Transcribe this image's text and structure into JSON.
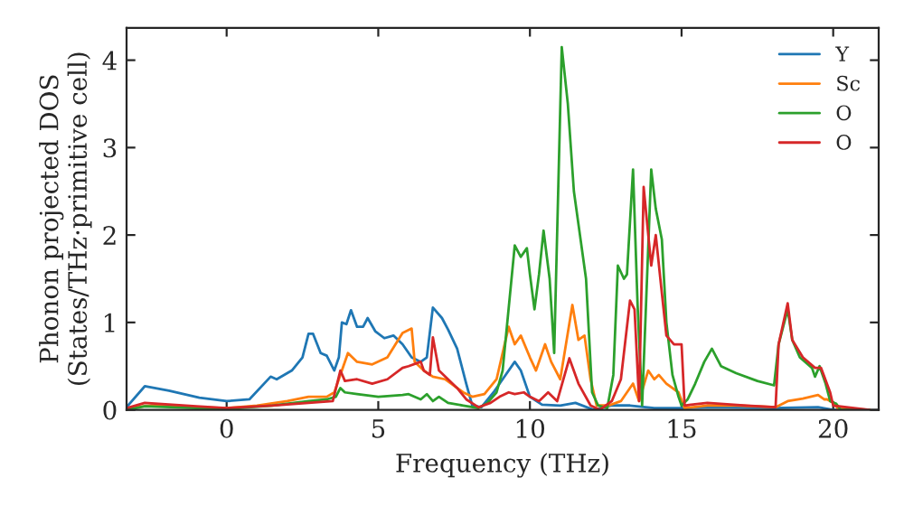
{
  "chart_data": {
    "type": "line",
    "xlabel": "Frequency (THz)",
    "ylabel": "Phonon projected DOS\n(States/THz·primitive cell)",
    "xlim": [
      -3.3,
      21.5
    ],
    "xticks": [
      0,
      5,
      10,
      15,
      20
    ],
    "ylim": [
      0,
      4.37
    ],
    "yticks": [
      0,
      1,
      2,
      3,
      4
    ],
    "grid": false,
    "legend": "top right",
    "series": [
      {
        "name": "Y",
        "color": "#1f77b4",
        "x": [
          -3.3,
          -2.7,
          -1.9,
          -0.9,
          0,
          0.75,
          1.45,
          1.65,
          2.15,
          2.5,
          2.7,
          2.85,
          3.1,
          3.3,
          3.55,
          3.7,
          3.8,
          3.95,
          4.1,
          4.3,
          4.5,
          4.65,
          4.9,
          5.2,
          5.5,
          5.8,
          6.1,
          6.4,
          6.6,
          6.8,
          7.1,
          7.3,
          7.6,
          7.9,
          8.1,
          8.4,
          8.8,
          9.1,
          9.5,
          9.7,
          10.0,
          10.4,
          11.0,
          11.5,
          12.1,
          12.7,
          13.3,
          14.1,
          15.0,
          16.0,
          18.0,
          19.5,
          20.0,
          21.2
        ],
        "values": [
          0.03,
          0.27,
          0.22,
          0.14,
          0.1,
          0.12,
          0.38,
          0.35,
          0.45,
          0.6,
          0.87,
          0.87,
          0.65,
          0.62,
          0.45,
          0.6,
          1.0,
          0.98,
          1.14,
          0.95,
          0.95,
          1.05,
          0.9,
          0.82,
          0.85,
          0.75,
          0.6,
          0.55,
          0.6,
          1.17,
          1.05,
          0.92,
          0.7,
          0.3,
          0.05,
          0.03,
          0.2,
          0.35,
          0.55,
          0.45,
          0.15,
          0.06,
          0.05,
          0.08,
          0.0,
          0.05,
          0.05,
          0.02,
          0.02,
          0.03,
          0.02,
          0.03,
          0.0,
          0.0
        ]
      },
      {
        "name": "Sc",
        "color": "#ff7f0e",
        "x": [
          -3.3,
          -2.5,
          -1.0,
          0,
          1.0,
          2.0,
          2.7,
          3.3,
          3.55,
          3.8,
          4.0,
          4.3,
          4.8,
          5.3,
          5.8,
          6.1,
          6.2,
          6.5,
          6.8,
          7.2,
          7.8,
          8.1,
          8.5,
          8.9,
          9.3,
          9.5,
          9.7,
          10.0,
          10.2,
          10.5,
          10.7,
          11.0,
          11.4,
          11.6,
          11.8,
          12.0,
          12.2,
          12.6,
          13.0,
          13.4,
          13.6,
          13.9,
          14.1,
          14.25,
          14.5,
          14.9,
          15.1,
          15.85,
          16.8,
          18.1,
          18.5,
          19.0,
          19.5,
          19.7,
          19.8,
          20.0,
          20.15,
          21.2
        ],
        "values": [
          0.02,
          0.05,
          0.03,
          0.02,
          0.05,
          0.1,
          0.15,
          0.15,
          0.2,
          0.45,
          0.65,
          0.55,
          0.52,
          0.6,
          0.88,
          0.93,
          0.55,
          0.45,
          0.38,
          0.35,
          0.2,
          0.15,
          0.18,
          0.35,
          0.95,
          0.75,
          0.85,
          0.6,
          0.45,
          0.75,
          0.55,
          0.35,
          1.2,
          0.8,
          0.85,
          0.35,
          0.05,
          0.05,
          0.1,
          0.3,
          0.1,
          0.45,
          0.35,
          0.4,
          0.3,
          0.2,
          0.02,
          0.05,
          0.05,
          0.03,
          0.1,
          0.13,
          0.17,
          0.12,
          0.12,
          0.08,
          0.02,
          0.0
        ]
      },
      {
        "name": "O",
        "color": "#2ca02c",
        "x": [
          -3.3,
          -2.7,
          -1.0,
          0,
          1.5,
          2.7,
          3.3,
          3.6,
          3.75,
          3.9,
          4.3,
          5.0,
          5.8,
          6.0,
          6.4,
          6.6,
          6.8,
          7.0,
          7.3,
          7.8,
          8.3,
          8.6,
          8.9,
          9.1,
          9.5,
          9.7,
          9.9,
          10.0,
          10.15,
          10.3,
          10.45,
          10.65,
          10.8,
          11.05,
          11.25,
          11.45,
          11.65,
          11.85,
          12.05,
          12.25,
          12.55,
          12.75,
          12.9,
          13.1,
          13.2,
          13.4,
          13.55,
          13.7,
          14.0,
          14.15,
          14.35,
          14.5,
          14.7,
          14.9,
          15.0,
          15.2,
          15.45,
          15.75,
          16.0,
          16.3,
          16.8,
          17.5,
          18.05,
          18.2,
          18.5,
          18.65,
          18.9,
          19.3,
          19.4,
          19.55,
          19.75,
          19.9,
          20.1,
          20.25,
          21.2
        ],
        "values": [
          0.0,
          0.04,
          0.02,
          0.01,
          0.05,
          0.1,
          0.12,
          0.15,
          0.25,
          0.2,
          0.18,
          0.15,
          0.17,
          0.18,
          0.12,
          0.18,
          0.1,
          0.15,
          0.08,
          0.05,
          0.02,
          0.08,
          0.2,
          0.45,
          1.88,
          1.75,
          1.85,
          1.55,
          1.15,
          1.55,
          2.05,
          1.5,
          0.65,
          4.15,
          3.5,
          2.5,
          2.0,
          1.5,
          0.2,
          0.05,
          0.02,
          0.4,
          1.65,
          1.5,
          1.55,
          2.75,
          1.2,
          0.05,
          2.75,
          2.3,
          1.95,
          1.0,
          0.4,
          0.15,
          0.05,
          0.12,
          0.3,
          0.55,
          0.7,
          0.5,
          0.42,
          0.33,
          0.28,
          0.75,
          1.15,
          0.8,
          0.6,
          0.48,
          0.38,
          0.5,
          0.3,
          0.1,
          0.07,
          0.0,
          0.0
        ]
      },
      {
        "name": "O",
        "color": "#d62728",
        "x": [
          -3.3,
          -2.7,
          -1.0,
          0,
          1.5,
          2.7,
          3.5,
          3.75,
          3.9,
          4.3,
          4.8,
          5.3,
          5.8,
          6.0,
          6.4,
          6.5,
          6.7,
          6.8,
          7.0,
          7.3,
          7.6,
          7.9,
          8.3,
          8.7,
          9.0,
          9.3,
          9.5,
          9.8,
          10.0,
          10.3,
          10.6,
          10.9,
          11.3,
          11.6,
          12.0,
          12.3,
          12.7,
          13.0,
          13.3,
          13.45,
          13.6,
          13.75,
          14.0,
          14.15,
          14.3,
          14.5,
          14.75,
          15.0,
          15.1,
          15.85,
          17.15,
          18.1,
          18.2,
          18.5,
          18.65,
          19.0,
          19.4,
          19.6,
          19.9,
          20.0,
          21.2
        ],
        "values": [
          0.02,
          0.08,
          0.04,
          0.02,
          0.05,
          0.08,
          0.1,
          0.45,
          0.33,
          0.35,
          0.3,
          0.35,
          0.48,
          0.5,
          0.55,
          0.45,
          0.4,
          0.83,
          0.45,
          0.35,
          0.25,
          0.12,
          0.03,
          0.08,
          0.15,
          0.2,
          0.18,
          0.2,
          0.15,
          0.1,
          0.2,
          0.1,
          0.59,
          0.3,
          0.05,
          0.0,
          0.1,
          0.35,
          1.25,
          1.15,
          0.1,
          2.55,
          1.65,
          2.0,
          1.5,
          0.85,
          0.75,
          0.75,
          0.05,
          0.08,
          0.05,
          0.03,
          0.75,
          1.22,
          0.8,
          0.6,
          0.48,
          0.48,
          0.2,
          0.05,
          0.0
        ]
      }
    ]
  }
}
